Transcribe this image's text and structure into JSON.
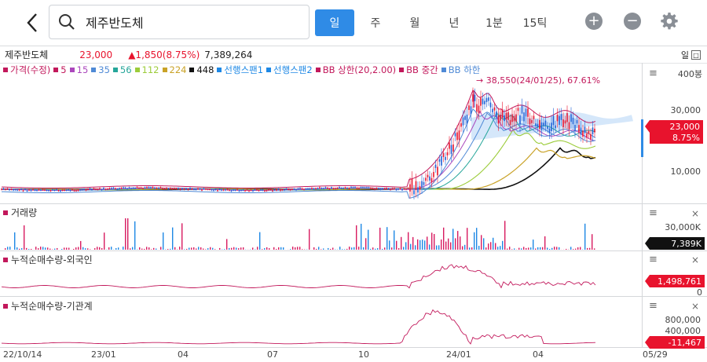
{
  "header": {
    "back_icon": "chevron-left-icon",
    "search_icon": "search-icon",
    "search_value": "제주반도체",
    "periods": [
      "일",
      "주",
      "월",
      "년"
    ],
    "minute": "1분",
    "tick": "15틱",
    "zoom_in_icon": "plus-circle-icon",
    "zoom_out_icon": "minus-circle-icon",
    "settings_icon": "gear-icon",
    "accent": "#2f8be6"
  },
  "info": {
    "name": "제주반도체",
    "price": "23,000",
    "change": "▲1,850(8.75%)",
    "volume": "7,389,264",
    "unit_label": "일",
    "up_color": "#e8132d"
  },
  "legend": [
    {
      "label": "가격(수정)",
      "color": "#c2185b"
    },
    {
      "label": "5",
      "color": "#c2185b"
    },
    {
      "label": "15",
      "color": "#ab47bc"
    },
    {
      "label": "35",
      "color": "#4f8ad6"
    },
    {
      "label": "56",
      "color": "#26a69a"
    },
    {
      "label": "112",
      "color": "#9ccc3a"
    },
    {
      "label": "224",
      "color": "#c9a227"
    },
    {
      "label": "448",
      "color": "#111111"
    },
    {
      "label": "선행스팬1",
      "color": "#1e88e5"
    },
    {
      "label": "선행스팬2",
      "color": "#1e88e5"
    },
    {
      "label": "BB 상한(20,2.00)",
      "color": "#c2185b"
    },
    {
      "label": "BB 중간",
      "color": "#c2185b"
    },
    {
      "label": "BB 하한",
      "color": "#4f8ad6"
    }
  ],
  "price_panel": {
    "annotation": "→ 38,550(24/01/25), 67.61%",
    "axis_top": "400봉",
    "axis_labels": [
      "30,000",
      "10,000"
    ],
    "badge_price": "23,000",
    "badge_pct": "8.75%"
  },
  "volume_panel": {
    "title": "거래량",
    "axis_label": "30,000K",
    "badge": "7,389K"
  },
  "foreign_panel": {
    "title": "누적순매수량-외국인",
    "badge": "1,498,761",
    "axis_zero": "0"
  },
  "institution_panel": {
    "title": "누적순매수량-기관계",
    "axis_labels": [
      "800,000",
      "400,000"
    ],
    "badge": "-11,467"
  },
  "x_axis": [
    "22/10/14",
    "23/01",
    "04",
    "07",
    "10",
    "24/01",
    "04",
    "05/29"
  ]
}
